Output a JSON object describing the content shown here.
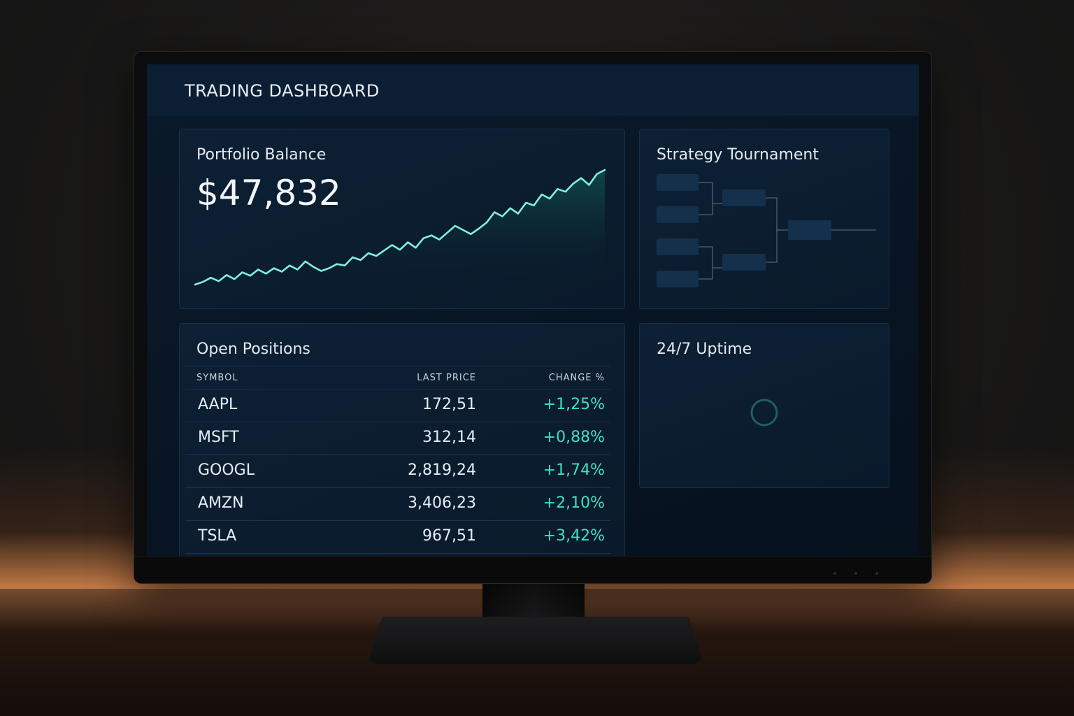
{
  "header": {
    "title": "TRADING DASHBOARD"
  },
  "portfolio": {
    "title": "Portfolio Balance",
    "balance": "$47,832",
    "line_color": "#7ff0dc",
    "fill_color": "#0f4a4c",
    "trend": [
      4,
      8,
      14,
      9,
      18,
      12,
      22,
      17,
      26,
      20,
      28,
      23,
      32,
      26,
      38,
      30,
      24,
      28,
      34,
      32,
      44,
      40,
      50,
      46,
      54,
      62,
      55,
      66,
      58,
      72,
      76,
      70,
      80,
      90,
      84,
      78,
      86,
      95,
      110,
      104,
      116,
      108,
      124,
      120,
      136,
      130,
      144,
      140,
      152,
      160,
      150,
      166,
      172
    ]
  },
  "tournament": {
    "title": "Strategy Tournament",
    "box_color": "#13304c",
    "line_color": "#5d7590"
  },
  "positions": {
    "title": "Open Positions",
    "columns": {
      "symbol": "SYMBOL",
      "price": "LAST PRICE",
      "change": "CHANGE %"
    },
    "rows": [
      {
        "symbol": "AAPL",
        "price": "172,51",
        "change": "+1,25%"
      },
      {
        "symbol": "MSFT",
        "price": "312,14",
        "change": "+0,88%"
      },
      {
        "symbol": "GOOGL",
        "price": "2,819,24",
        "change": "+1,74%"
      },
      {
        "symbol": "AMZN",
        "price": "3,406,23",
        "change": "+2,10%"
      },
      {
        "symbol": "TSLA",
        "price": "967,51",
        "change": "+3,42%"
      }
    ]
  },
  "uptime": {
    "title": "24/7 Uptime",
    "ring_color": "#1f5f63"
  }
}
